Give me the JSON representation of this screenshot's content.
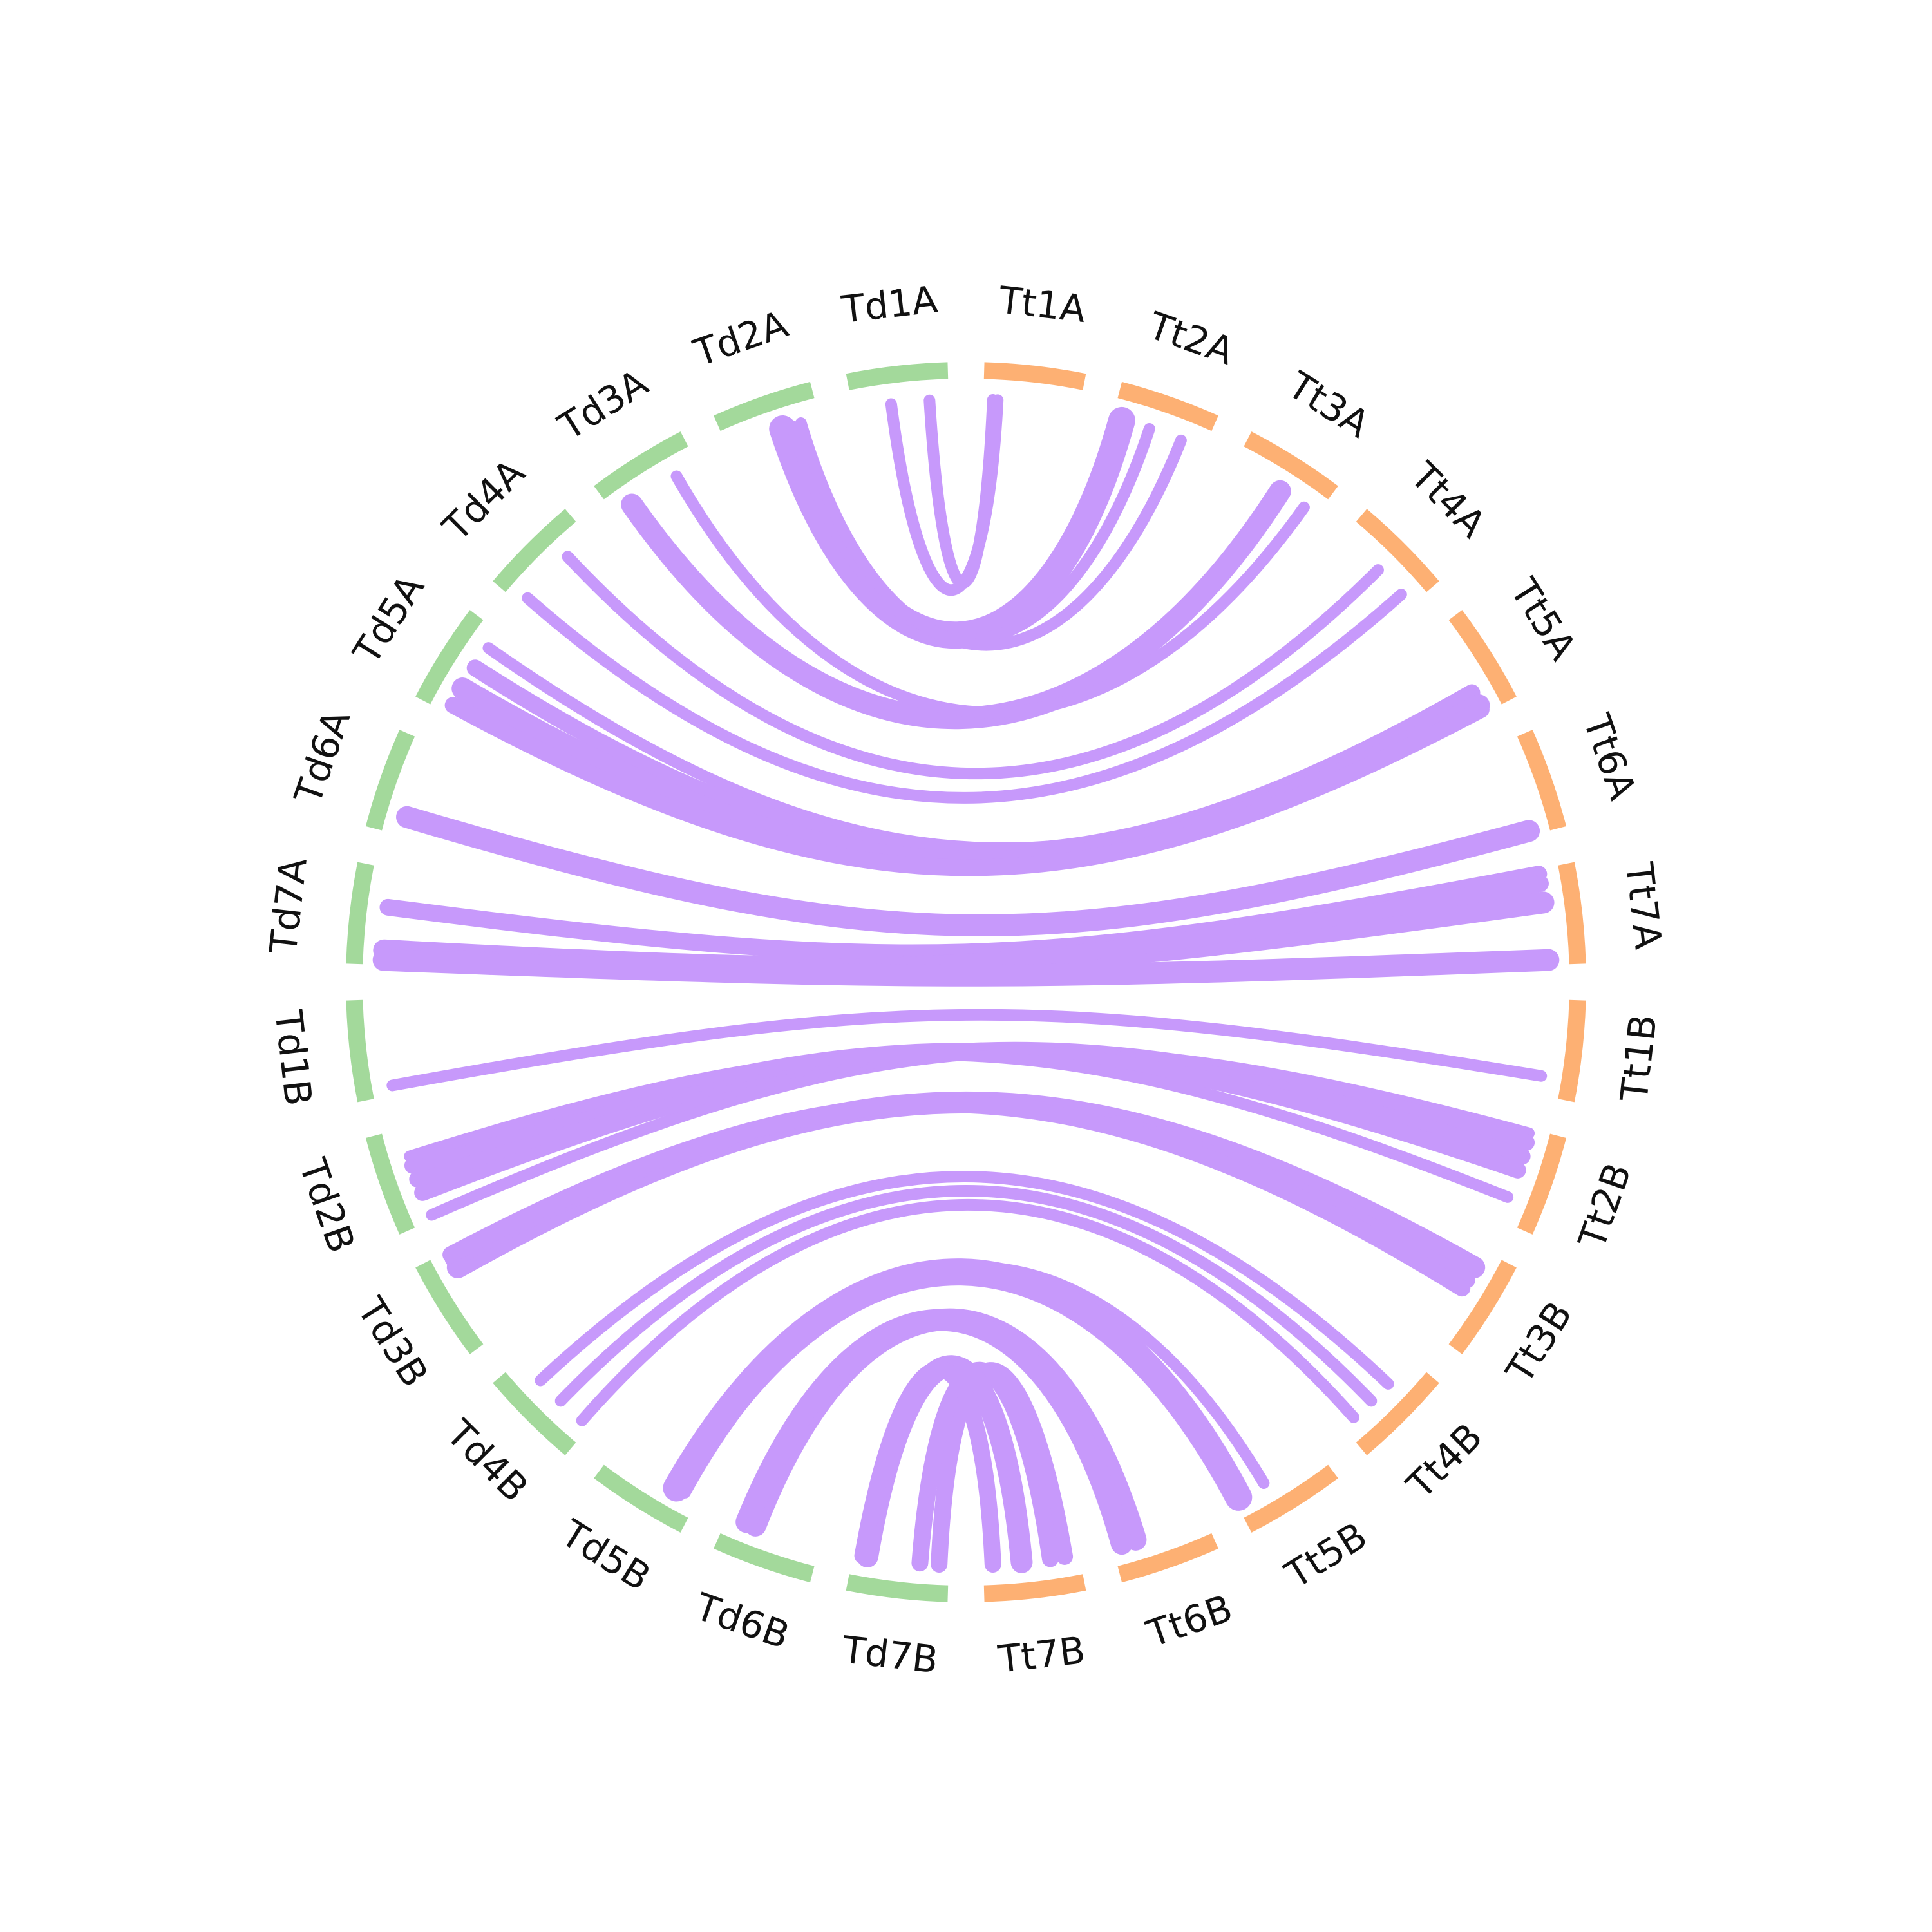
{
  "colors": {
    "Td": "#a3d99b",
    "Tt": "#fdb073",
    "link": "#c799fb"
  },
  "chromosomes": [
    {
      "label": "Tt1A",
      "genome": "Tt"
    },
    {
      "label": "Tt2A",
      "genome": "Tt"
    },
    {
      "label": "Tt3A",
      "genome": "Tt"
    },
    {
      "label": "Tt4A",
      "genome": "Tt"
    },
    {
      "label": "Tt5A",
      "genome": "Tt"
    },
    {
      "label": "Tt6A",
      "genome": "Tt"
    },
    {
      "label": "Tt7A",
      "genome": "Tt"
    },
    {
      "label": "Tt1B",
      "genome": "Tt"
    },
    {
      "label": "Tt2B",
      "genome": "Tt"
    },
    {
      "label": "Tt3B",
      "genome": "Tt"
    },
    {
      "label": "Tt4B",
      "genome": "Tt"
    },
    {
      "label": "Tt5B",
      "genome": "Tt"
    },
    {
      "label": "Tt6B",
      "genome": "Tt"
    },
    {
      "label": "Tt7B",
      "genome": "Tt"
    },
    {
      "label": "Td7B",
      "genome": "Td"
    },
    {
      "label": "Td6B",
      "genome": "Td"
    },
    {
      "label": "Td5B",
      "genome": "Td"
    },
    {
      "label": "Td4B",
      "genome": "Td"
    },
    {
      "label": "Td3B",
      "genome": "Td"
    },
    {
      "label": "Td2B",
      "genome": "Td"
    },
    {
      "label": "Td1B",
      "genome": "Td"
    },
    {
      "label": "Td7A",
      "genome": "Td"
    },
    {
      "label": "Td6A",
      "genome": "Td"
    },
    {
      "label": "Td5A",
      "genome": "Td"
    },
    {
      "label": "Td4A",
      "genome": "Td"
    },
    {
      "label": "Td3A",
      "genome": "Td"
    },
    {
      "label": "Td2A",
      "genome": "Td"
    },
    {
      "label": "Td1A",
      "genome": "Td"
    }
  ],
  "links": [
    {
      "from": "Td1A",
      "from_pos": 0.8,
      "to": "Tt1A",
      "to_pos": 0.1,
      "weight": 1
    },
    {
      "from": "Td1A",
      "from_pos": 0.4,
      "to": "Tt1A",
      "to_pos": 0.15,
      "weight": 1
    },
    {
      "from": "Td2A",
      "from_pos": 0.6,
      "to": "Tt2A",
      "to_pos": 0.1,
      "weight": 4
    },
    {
      "from": "Td2A",
      "from_pos": 0.7,
      "to": "Tt2A",
      "to_pos": 0.4,
      "weight": 1
    },
    {
      "from": "Td2A",
      "from_pos": 0.8,
      "to": "Tt2A",
      "to_pos": 0.75,
      "weight": 1
    },
    {
      "from": "Td3A",
      "from_pos": 0.2,
      "to": "Tt3A",
      "to_pos": 0.55,
      "weight": 3
    },
    {
      "from": "Td3A",
      "from_pos": 0.75,
      "to": "Tt3A",
      "to_pos": 0.85,
      "weight": 1
    },
    {
      "from": "Td4A",
      "from_pos": 0.7,
      "to": "Tt4A",
      "to_pos": 0.5,
      "weight": 1
    },
    {
      "from": "Td4A",
      "from_pos": 0.1,
      "to": "Tt4A",
      "to_pos": 0.85,
      "weight": 1
    },
    {
      "from": "Td5A",
      "from_pos": 0.8,
      "to": "Tt5A",
      "to_pos": 0.8,
      "weight": 1
    },
    {
      "from": "Td5A",
      "from_pos": 0.55,
      "to": "Tt5A",
      "to_pos": 0.75,
      "weight": 2
    },
    {
      "from": "Td5A",
      "from_pos": 0.3,
      "to": "Tt5A",
      "to_pos": 0.9,
      "weight": 3
    },
    {
      "from": "Td5A",
      "from_pos": 0.1,
      "to": "Tt5A",
      "to_pos": 0.95,
      "weight": 2
    },
    {
      "from": "Td6A",
      "from_pos": 0.2,
      "to": "Tt6A",
      "to_pos": 0.95,
      "weight": 3
    },
    {
      "from": "Td7A",
      "from_pos": 0.6,
      "to": "Tt7A",
      "to_pos": 0.05,
      "weight": 2
    },
    {
      "from": "Td7A",
      "from_pos": 0.15,
      "to": "Tt7A",
      "to_pos": 0.35,
      "weight": 3
    },
    {
      "from": "Td7A",
      "from_pos": 0.1,
      "to": "Tt7A",
      "to_pos": 0.15,
      "weight": 2
    },
    {
      "from": "Td7A",
      "from_pos": 0.05,
      "to": "Tt7A",
      "to_pos": 0.95,
      "weight": 3
    },
    {
      "from": "Td1B",
      "from_pos": 0.1,
      "to": "Tt1B",
      "to_pos": 0.8,
      "weight": 1
    },
    {
      "from": "Td2B",
      "from_pos": 0.05,
      "to": "Tt2B",
      "to_pos": 0.05,
      "weight": 1
    },
    {
      "from": "Td2B",
      "from_pos": 0.3,
      "to": "Tt2B",
      "to_pos": 0.15,
      "weight": 2
    },
    {
      "from": "Td2B",
      "from_pos": 0.45,
      "to": "Tt2B",
      "to_pos": 0.3,
      "weight": 2
    },
    {
      "from": "Td2B",
      "from_pos": 0.6,
      "to": "Tt2B",
      "to_pos": 0.45,
      "weight": 2
    },
    {
      "from": "Td2B",
      "from_pos": 0.7,
      "to": "Tt2B",
      "to_pos": 0.75,
      "weight": 1
    },
    {
      "from": "Td3B",
      "from_pos": 0.8,
      "to": "Tt3B",
      "to_pos": 0.2,
      "weight": 3
    },
    {
      "from": "Td3B",
      "from_pos": 0.9,
      "to": "Tt3B",
      "to_pos": 0.35,
      "weight": 2
    },
    {
      "from": "Td3B",
      "from_pos": 0.95,
      "to": "Tt3B",
      "to_pos": 0.45,
      "weight": 2
    },
    {
      "from": "Td4B",
      "from_pos": 0.1,
      "to": "Tt4B",
      "to_pos": 0.85,
      "weight": 1
    },
    {
      "from": "Td4B",
      "from_pos": 0.4,
      "to": "Tt4B",
      "to_pos": 0.6,
      "weight": 1
    },
    {
      "from": "Td4B",
      "from_pos": 0.7,
      "to": "Tt4B",
      "to_pos": 0.35,
      "weight": 1
    },
    {
      "from": "Td5B",
      "from_pos": 0.15,
      "to": "Tt5B",
      "to_pos": 0.65,
      "weight": 1
    },
    {
      "from": "Td5B",
      "from_pos": 0.25,
      "to": "Tt5B",
      "to_pos": 0.95,
      "weight": 4
    },
    {
      "from": "Td6B",
      "from_pos": 0.7,
      "to": "Tt6B",
      "to_pos": 0.75,
      "weight": 3
    },
    {
      "from": "Td6B",
      "from_pos": 0.8,
      "to": "Tt6B",
      "to_pos": 0.9,
      "weight": 3
    },
    {
      "from": "Td7B",
      "from_pos": 0.1,
      "to": "Tt7B",
      "to_pos": 0.15,
      "weight": 2
    },
    {
      "from": "Td7B",
      "from_pos": 0.3,
      "to": "Tt7B",
      "to_pos": 0.3,
      "weight": 2
    },
    {
      "from": "Td7B",
      "from_pos": 0.85,
      "to": "Tt7B",
      "to_pos": 0.6,
      "weight": 3
    },
    {
      "from": "Td7B",
      "from_pos": 0.9,
      "to": "Tt7B",
      "to_pos": 0.9,
      "weight": 2
    }
  ]
}
